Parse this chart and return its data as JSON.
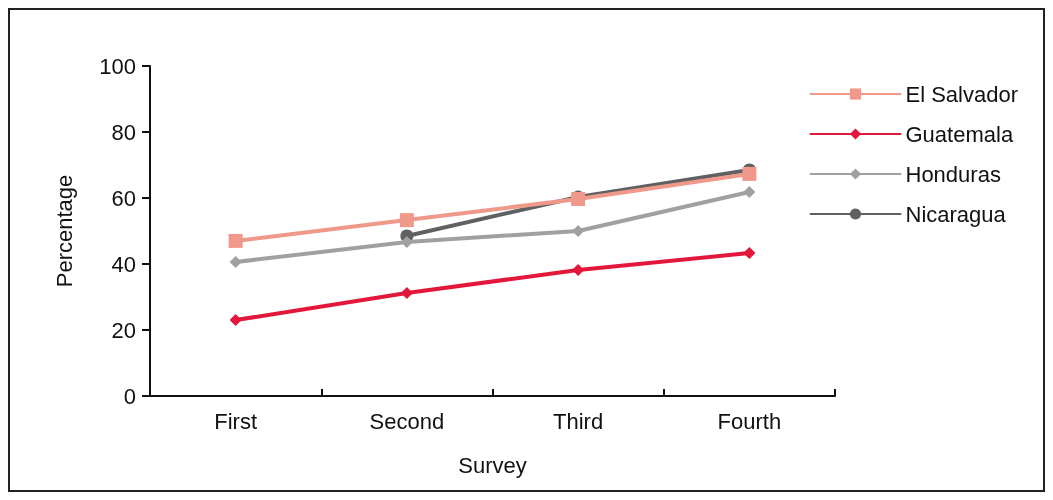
{
  "chart_data": {
    "type": "line",
    "xlabel": "Survey",
    "ylabel": "Percentage",
    "categories": [
      "First",
      "Second",
      "Third",
      "Fourth"
    ],
    "series": [
      {
        "name": "El Salvador",
        "color": "#f0998a",
        "marker": "square",
        "values": [
          47,
          53.3,
          59.7,
          67.3
        ]
      },
      {
        "name": "Guatemala",
        "color": "#e2173a",
        "marker": "diamond",
        "values": [
          23,
          31.2,
          38.2,
          43.3
        ]
      },
      {
        "name": "Honduras",
        "color": "#a0a0a0",
        "marker": "diamond",
        "values": [
          40.6,
          46.7,
          50,
          61.8
        ]
      },
      {
        "name": "Nicaragua",
        "color": "#5f6062",
        "marker": "circle",
        "values": [
          null,
          48.5,
          60.3,
          68.5
        ]
      }
    ],
    "ylim": [
      0,
      100
    ],
    "yticks": [
      0,
      20,
      40,
      60,
      80,
      100
    ],
    "grid": false,
    "legend": "right",
    "line_style": "solid"
  }
}
